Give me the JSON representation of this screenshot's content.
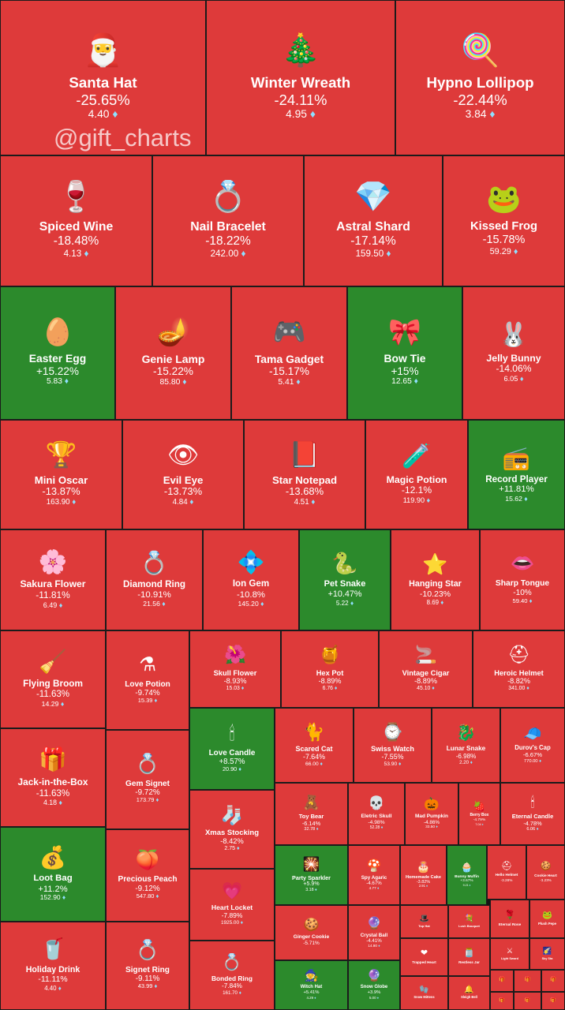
{
  "watermark": "@gift_charts",
  "colors": {
    "negative": "#de3a3a",
    "positive": "#2c8a2c",
    "border": "#1b1b1b",
    "diamond": "#8fe0ff"
  },
  "currency_icon": "diamond-icon",
  "chart_data": {
    "type": "treemap",
    "tiles": [
      {
        "name": "Santa Hat",
        "change": "-25.65%",
        "price": "4.40",
        "icon": "santa-hat-icon",
        "glyph": "🎅"
      },
      {
        "name": "Winter Wreath",
        "change": "-24.11%",
        "price": "4.95",
        "icon": "wreath-icon",
        "glyph": "🎄"
      },
      {
        "name": "Hypno Lollipop",
        "change": "-22.44%",
        "price": "3.84",
        "icon": "lollipop-icon",
        "glyph": "🍭"
      },
      {
        "name": "Spiced Wine",
        "change": "-18.48%",
        "price": "4.13",
        "icon": "wine-glass-icon",
        "glyph": "🍷"
      },
      {
        "name": "Nail Bracelet",
        "change": "-18.22%",
        "price": "242.00",
        "icon": "bracelet-icon",
        "glyph": "💍"
      },
      {
        "name": "Astral Shard",
        "change": "-17.14%",
        "price": "159.50",
        "icon": "crystal-shard-icon",
        "glyph": "💎"
      },
      {
        "name": "Kissed Frog",
        "change": "-15.78%",
        "price": "59.29",
        "icon": "frog-icon",
        "glyph": "🐸"
      },
      {
        "name": "Easter Egg",
        "change": "+15.22%",
        "price": "5.83",
        "icon": "easter-egg-icon",
        "glyph": "🥚"
      },
      {
        "name": "Genie Lamp",
        "change": "-15.22%",
        "price": "85.80",
        "icon": "genie-lamp-icon",
        "glyph": "🪔"
      },
      {
        "name": "Tama Gadget",
        "change": "-15.17%",
        "price": "5.41",
        "icon": "tamagotchi-icon",
        "glyph": "🎮"
      },
      {
        "name": "Bow Tie",
        "change": "+15%",
        "price": "12.65",
        "icon": "bow-tie-icon",
        "glyph": "🎀"
      },
      {
        "name": "Jelly Bunny",
        "change": "-14.06%",
        "price": "6.05",
        "icon": "bunny-icon",
        "glyph": "🐰"
      },
      {
        "name": "Mini Oscar",
        "change": "-13.87%",
        "price": "163.90",
        "icon": "trophy-icon",
        "glyph": "🏆"
      },
      {
        "name": "Evil Eye",
        "change": "-13.73%",
        "price": "4.84",
        "icon": "eye-icon",
        "glyph": "👁"
      },
      {
        "name": "Star Notepad",
        "change": "-13.68%",
        "price": "4.51",
        "icon": "notepad-icon",
        "glyph": "📕"
      },
      {
        "name": "Magic Potion",
        "change": "-12.1%",
        "price": "119.90",
        "icon": "potion-icon",
        "glyph": "🧪"
      },
      {
        "name": "Record Player",
        "change": "+11.81%",
        "price": "15.62",
        "icon": "record-player-icon",
        "glyph": "📻"
      },
      {
        "name": "Sakura Flower",
        "change": "-11.81%",
        "price": "6.49",
        "icon": "sakura-icon",
        "glyph": "🌸"
      },
      {
        "name": "Diamond Ring",
        "change": "-10.91%",
        "price": "21.56",
        "icon": "ring-box-icon",
        "glyph": "💍"
      },
      {
        "name": "Ion Gem",
        "change": "-10.8%",
        "price": "145.20",
        "icon": "gem-icon",
        "glyph": "💠"
      },
      {
        "name": "Pet Snake",
        "change": "+10.47%",
        "price": "5.22",
        "icon": "snake-icon",
        "glyph": "🐍"
      },
      {
        "name": "Hanging Star",
        "change": "-10.23%",
        "price": "8.69",
        "icon": "star-icon",
        "glyph": "⭐"
      },
      {
        "name": "Sharp Tongue",
        "change": "-10%",
        "price": "59.40",
        "icon": "lips-icon",
        "glyph": "👄"
      },
      {
        "name": "Flying Broom",
        "change": "-11.63%",
        "price": "14.29",
        "icon": "broom-icon",
        "glyph": "🧹"
      },
      {
        "name": "Love Potion",
        "change": "-9.74%",
        "price": "15.39",
        "icon": "love-potion-icon",
        "glyph": "⚗"
      },
      {
        "name": "Skull Flower",
        "change": "-8.93%",
        "price": "15.03",
        "icon": "skull-flower-icon",
        "glyph": "🌺"
      },
      {
        "name": "Hex Pot",
        "change": "-8.89%",
        "price": "6.76",
        "icon": "cauldron-icon",
        "glyph": "🍯"
      },
      {
        "name": "Vintage Cigar",
        "change": "-8.89%",
        "price": "45.10",
        "icon": "cigar-icon",
        "glyph": "🚬"
      },
      {
        "name": "Heroic Helmet",
        "change": "-8.82%",
        "price": "341.00",
        "icon": "helmet-icon",
        "glyph": "⛑"
      },
      {
        "name": "Love Candle",
        "change": "+8.57%",
        "price": "20.90",
        "icon": "candle-icon",
        "glyph": "🕯"
      },
      {
        "name": "Scared Cat",
        "change": "-7.64%",
        "price": "66.00",
        "icon": "cat-icon",
        "glyph": "🐈"
      },
      {
        "name": "Swiss Watch",
        "change": "-7.55%",
        "price": "53.90",
        "icon": "watch-icon",
        "glyph": "⌚"
      },
      {
        "name": "Lunar Snake",
        "change": "-6.98%",
        "price": "2.20",
        "icon": "lunar-snake-icon",
        "glyph": "🐉"
      },
      {
        "name": "Durov's Cap",
        "change": "-6.67%",
        "price": "770.00",
        "icon": "cap-icon",
        "glyph": "🧢"
      },
      {
        "name": "Jack-in-the-Box",
        "change": "-11.63%",
        "price": "4.18",
        "icon": "jack-box-icon",
        "glyph": "🎁"
      },
      {
        "name": "Gem Signet",
        "change": "-9.72%",
        "price": "173.79",
        "icon": "signet-ring-icon",
        "glyph": "💍"
      },
      {
        "name": "Toy Bear",
        "change": "-6.14%",
        "price": "32.78",
        "icon": "teddy-bear-icon",
        "glyph": "🧸"
      },
      {
        "name": "Eletric Skull",
        "change": "-4.98%",
        "price": "52.28",
        "icon": "skull-icon",
        "glyph": "💀"
      },
      {
        "name": "Mad Pumpkin",
        "change": "-4.86%",
        "price": "33.50",
        "icon": "pumpkin-icon",
        "glyph": "🎃"
      },
      {
        "name": "Berry Box",
        "change": "-4.79%",
        "price": "7.04",
        "icon": "berry-box-icon",
        "glyph": "🍓"
      },
      {
        "name": "Eternal Candle",
        "change": "-4.78%",
        "price": "6.06",
        "icon": "candle-icon",
        "glyph": "🕯"
      },
      {
        "name": "Xmas Stocking",
        "change": "-8.42%",
        "price": "2.75",
        "icon": "stocking-icon",
        "glyph": "🧦"
      },
      {
        "name": "Loot Bag",
        "change": "+11.2%",
        "price": "152.90",
        "icon": "loot-bag-icon",
        "glyph": "💰"
      },
      {
        "name": "Precious Peach",
        "change": "-9.12%",
        "price": "547.80",
        "icon": "peach-icon",
        "glyph": "🍑"
      },
      {
        "name": "Party Sparkler",
        "change": "+5.9%",
        "price": "3.18",
        "icon": "sparkler-icon",
        "glyph": "🎇"
      },
      {
        "name": "Spy Agaric",
        "change": "-4.67%",
        "price": "4.77",
        "icon": "mushroom-icon",
        "glyph": "🍄"
      },
      {
        "name": "Homemade Cake",
        "change": "-3.82%",
        "price": "2.91",
        "icon": "cake-icon",
        "glyph": "🎂"
      },
      {
        "name": "Bunny Muffin",
        "change": "+3.67%",
        "price": "9.21",
        "icon": "muffin-icon",
        "glyph": "🧁"
      },
      {
        "name": "Hello Helmet",
        "change": "-3.28%",
        "price": "",
        "icon": "helmet-icon",
        "glyph": "⛑"
      },
      {
        "name": "Cookie Heart",
        "change": "-3.23%",
        "price": "",
        "icon": "cookie-icon",
        "glyph": "🍪"
      },
      {
        "name": "Heart Locket",
        "change": "-7.89%",
        "price": "1925.00",
        "icon": "locket-icon",
        "glyph": "💗"
      },
      {
        "name": "Ginger Cookie",
        "change": "-5.71%",
        "price": "",
        "icon": "ginger-cookie-icon",
        "glyph": "🍪"
      },
      {
        "name": "Crystal Ball",
        "change": "-4.41%",
        "price": "14.90",
        "icon": "crystal-ball-icon",
        "glyph": "🔮"
      },
      {
        "name": "Top Hat",
        "change": "",
        "price": "",
        "icon": "top-hat-icon",
        "glyph": "🎩"
      },
      {
        "name": "Lush Bouquet",
        "change": "",
        "price": "",
        "icon": "bouquet-icon",
        "glyph": "💐"
      },
      {
        "name": "Eternal Rose",
        "change": "",
        "price": "",
        "icon": "rose-icon",
        "glyph": "🌹"
      },
      {
        "name": "Plush Pepe",
        "change": "",
        "price": "",
        "icon": "frog-icon",
        "glyph": "🐸"
      },
      {
        "name": "Trapped Heart",
        "change": "",
        "price": "",
        "icon": "heart-icon",
        "glyph": "❤"
      },
      {
        "name": "Restless Jar",
        "change": "",
        "price": "",
        "icon": "jar-icon",
        "glyph": "🫙"
      },
      {
        "name": "Light Sword",
        "change": "",
        "price": "",
        "icon": "sword-icon",
        "glyph": "⚔"
      },
      {
        "name": "Sky Sta",
        "change": "",
        "price": "",
        "icon": "sky-icon",
        "glyph": "🌠"
      },
      {
        "name": "Holiday Drink",
        "change": "-11.11%",
        "price": "4.40",
        "icon": "holiday-drink-icon",
        "glyph": "🥤"
      },
      {
        "name": "Signet Ring",
        "change": "-9.11%",
        "price": "43.99",
        "icon": "ring-icon",
        "glyph": "💍"
      },
      {
        "name": "Bonded Ring",
        "change": "-7.84%",
        "price": "161.70",
        "icon": "ring-icon",
        "glyph": "💍"
      },
      {
        "name": "Witch Hat",
        "change": "+5.41%",
        "price": "4.29",
        "icon": "witch-hat-icon",
        "glyph": "🧙"
      },
      {
        "name": "Snow Globe",
        "change": "+3.9%",
        "price": "5.00",
        "icon": "snow-globe-icon",
        "glyph": "🔮"
      },
      {
        "name": "Snow Mittens",
        "change": "",
        "price": "",
        "icon": "mittens-icon",
        "glyph": "🧤"
      },
      {
        "name": "Sleigh Bell",
        "change": "",
        "price": "",
        "icon": "bell-icon",
        "glyph": "🔔"
      },
      {
        "name": "",
        "change": "",
        "price": "",
        "icon": "gift-icon",
        "glyph": "🎁"
      },
      {
        "name": "",
        "change": "",
        "price": "",
        "icon": "gift-icon",
        "glyph": "🎁"
      },
      {
        "name": "",
        "change": "",
        "price": "",
        "icon": "gift-icon",
        "glyph": "🎁"
      },
      {
        "name": "",
        "change": "",
        "price": "",
        "icon": "gift-icon",
        "glyph": "🎁"
      },
      {
        "name": "",
        "change": "",
        "price": "",
        "icon": "gift-icon",
        "glyph": "🎁"
      },
      {
        "name": "",
        "change": "",
        "price": "",
        "icon": "gift-icon",
        "glyph": "🎁"
      }
    ]
  }
}
